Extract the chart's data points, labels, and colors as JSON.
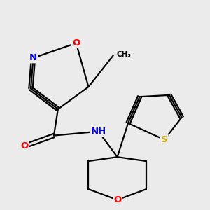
{
  "background_color": "#EBEBEB",
  "bond_color": "#000000",
  "atom_colors": {
    "O": "#FF0000",
    "N": "#0000FF",
    "S": "#CCAA00",
    "C": "#000000",
    "H": "#708090"
  },
  "bond_lw": 1.6,
  "font_size": 9.5
}
